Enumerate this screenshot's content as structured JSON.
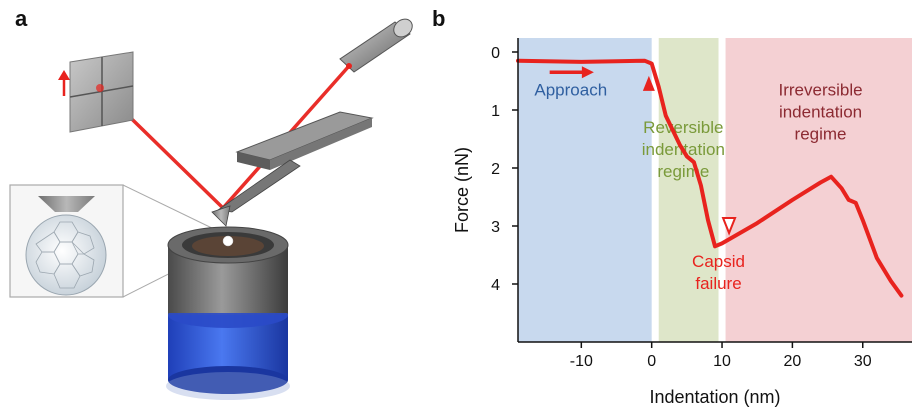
{
  "panels": {
    "a_label": "a",
    "b_label": "b"
  },
  "chart_data": {
    "type": "line",
    "xlabel": "Indentation (nm)",
    "ylabel": "Force (nN)",
    "xlim": [
      -19,
      37
    ],
    "ylim": [
      0,
      4.9
    ],
    "y_inverted": true,
    "x_ticks": [
      -10,
      0,
      10,
      20,
      30
    ],
    "x_tick_labels": [
      "-10",
      "0",
      "10",
      "20",
      "30"
    ],
    "y_ticks": [
      0,
      1,
      2,
      3,
      4
    ],
    "y_tick_labels": [
      "0",
      "1",
      "2",
      "3",
      "4"
    ],
    "grid": false,
    "series": [
      {
        "color": "#e8231e",
        "x": [
          -19,
          -10,
          -5,
          -1,
          0,
          1,
          2,
          4,
          5,
          6,
          7,
          8,
          9,
          10,
          15,
          20,
          24,
          25.5,
          27,
          28,
          29,
          30,
          32,
          34,
          35.5
        ],
        "y": [
          0.15,
          0.17,
          0.16,
          0.15,
          0.2,
          0.6,
          1.1,
          1.6,
          1.8,
          1.9,
          2.3,
          2.9,
          3.35,
          3.3,
          2.95,
          2.55,
          2.25,
          2.15,
          2.35,
          2.55,
          2.6,
          2.9,
          3.55,
          3.95,
          4.2
        ]
      }
    ],
    "regions": [
      {
        "label_lines": [
          "Approach"
        ],
        "x0": -19,
        "x1": 0,
        "color": "#c8d9ee",
        "label_color": "#2f5fa0"
      },
      {
        "label_lines": [
          "Reversible",
          "indentation",
          "regime"
        ],
        "x0": 1,
        "x1": 9.5,
        "color": "#dee6c9",
        "label_color": "#7a9a3a"
      },
      {
        "label_lines": [
          "Irreversible",
          "indentation",
          "regime"
        ],
        "x0": 10.5,
        "x1": 37,
        "color": "#f4d0d3",
        "label_color": "#8c2a32"
      }
    ],
    "annotations": [
      {
        "text_lines": [
          "Capsid",
          "failure"
        ],
        "x": 9.5,
        "y": 3.6,
        "color": "#e8231e"
      }
    ],
    "markers": [
      {
        "kind": "filled-triangle-up",
        "x": -0.4,
        "y": 0.55,
        "color": "#e8231e"
      },
      {
        "kind": "open-triangle-down",
        "x": 11,
        "y": 3.0,
        "color": "#e8231e"
      },
      {
        "kind": "arrow-right",
        "x0": -14.5,
        "x1": -8.5,
        "y": 0.35,
        "color": "#e8231e"
      }
    ]
  },
  "colors": {
    "laser": "#e8231e",
    "metal_dark": "#5a5a5a",
    "metal_mid": "#8c8c8c",
    "liquid_blue": "#2f5fe0"
  },
  "icons": {
    "detector": "quadrant-photodetector-icon",
    "laser": "laser-source-icon",
    "cantilever": "afm-cantilever-icon",
    "cell": "liquid-cell-icon",
    "capsid": "virus-capsid-icon"
  }
}
